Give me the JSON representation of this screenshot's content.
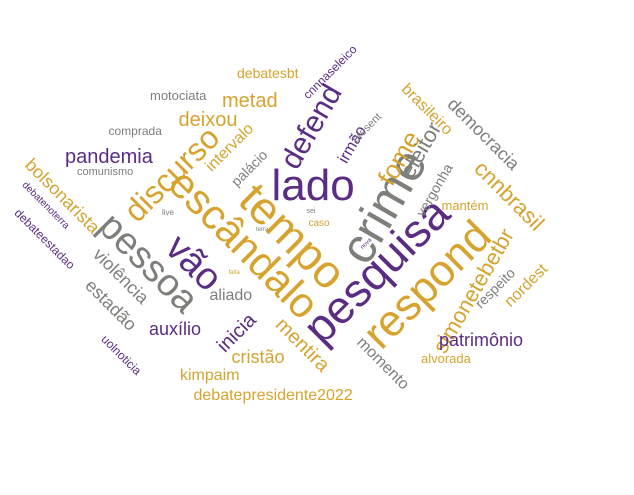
{
  "palette": {
    "gold": "#d6a32e",
    "purple": "#5b2c83",
    "gray": "#7d7f7b"
  },
  "words": [
    {
      "text": "crime",
      "color": "gray"
    },
    {
      "text": "lado",
      "color": "purple"
    },
    {
      "text": "tempo",
      "color": "gold"
    },
    {
      "text": "escândalo",
      "color": "gold"
    },
    {
      "text": "pesquisa",
      "color": "purple"
    },
    {
      "text": "respond",
      "color": "gold"
    },
    {
      "text": "pessoa",
      "color": "gray"
    },
    {
      "text": "vão",
      "color": "purple"
    },
    {
      "text": "discurso",
      "color": "gold"
    },
    {
      "text": "defend",
      "color": "purple"
    },
    {
      "text": "fome",
      "color": "gold"
    },
    {
      "text": "simonetebetbr",
      "color": "gold"
    },
    {
      "text": "cnnbrasil",
      "color": "gold"
    },
    {
      "text": "eleitor",
      "color": "gray"
    },
    {
      "text": "pandemia",
      "color": "purple"
    },
    {
      "text": "metad",
      "color": "gold"
    },
    {
      "text": "deixou",
      "color": "gold"
    },
    {
      "text": "democracia",
      "color": "gray"
    },
    {
      "text": "mentira",
      "color": "gold"
    },
    {
      "text": "inicia",
      "color": "purple"
    },
    {
      "text": "bolsonarista",
      "color": "gold"
    },
    {
      "text": "violência",
      "color": "gray"
    },
    {
      "text": "estadão",
      "color": "gray"
    },
    {
      "text": "auxílio",
      "color": "purple"
    },
    {
      "text": "cristão",
      "color": "gold"
    },
    {
      "text": "aliado",
      "color": "gray"
    },
    {
      "text": "patrimônio",
      "color": "purple"
    },
    {
      "text": "debatepresidente2022",
      "color": "gold"
    },
    {
      "text": "kimpaim",
      "color": "gold"
    },
    {
      "text": "nordest",
      "color": "gold"
    },
    {
      "text": "vergonha",
      "color": "gray"
    },
    {
      "text": "brasileiro",
      "color": "gold"
    },
    {
      "text": "momento",
      "color": "gray"
    },
    {
      "text": "respeito",
      "color": "gray"
    },
    {
      "text": "intervalo",
      "color": "gold"
    },
    {
      "text": "irmão",
      "color": "purple"
    },
    {
      "text": "palácio",
      "color": "gray"
    },
    {
      "text": "mantém",
      "color": "gold"
    },
    {
      "text": "alvorada",
      "color": "gold"
    },
    {
      "text": "uolnoticia",
      "color": "purple"
    },
    {
      "text": "debatesbt",
      "color": "gold"
    },
    {
      "text": "motociata",
      "color": "gray"
    },
    {
      "text": "cnnnaseleico",
      "color": "purple"
    },
    {
      "text": "debateestadao",
      "color": "purple"
    },
    {
      "text": "debatenoterra",
      "color": "purple"
    },
    {
      "text": "comunismo",
      "color": "gray"
    },
    {
      "text": "comprada",
      "color": "gray"
    },
    {
      "text": "present",
      "color": "gray"
    },
    {
      "text": "caso",
      "color": "gold"
    },
    {
      "text": "live",
      "color": "gray"
    },
    {
      "text": "sei",
      "color": "gray"
    },
    {
      "text": "nova",
      "color": "purple"
    },
    {
      "text": "terra",
      "color": "gray"
    },
    {
      "text": "falta",
      "color": "gold"
    }
  ]
}
